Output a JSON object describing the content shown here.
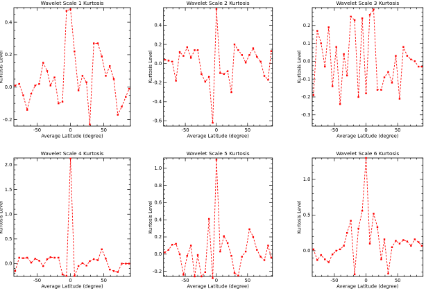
{
  "figure": {
    "background": "#ffffff",
    "axis_color": "#000000",
    "series_color": "#ff0000",
    "rows": 2,
    "cols": 3
  },
  "chart_data": [
    {
      "type": "line",
      "title": "Wavelet Scale 1 Kurtosis",
      "xlabel": "Average Latitude (degree)",
      "ylabel": "Kurtosis Level",
      "legend": "none",
      "grid": false,
      "line_style": "dashed",
      "marker": "square",
      "xlim": [
        -85,
        90
      ],
      "ylim": [
        -0.24,
        0.49
      ],
      "xticks": [
        -50,
        0,
        50
      ],
      "x_minor_step": 10,
      "yticks": [
        -0.2,
        0.0,
        0.2,
        0.4
      ],
      "y_minor_step": 0.05,
      "x": [
        -83,
        -77,
        -71,
        -65,
        -59,
        -53,
        -47,
        -41,
        -35,
        -30,
        -24,
        -18,
        -12,
        -6,
        0,
        6,
        12,
        18,
        24,
        29,
        35,
        41,
        47,
        53,
        59,
        65,
        71,
        77,
        83,
        88
      ],
      "y": [
        0.01,
        0.02,
        -0.05,
        -0.14,
        -0.04,
        0.01,
        0.02,
        0.15,
        0.1,
        0.01,
        0.06,
        -0.1,
        -0.09,
        0.47,
        0.48,
        0.22,
        -0.02,
        0.07,
        0.03,
        -0.23,
        0.27,
        0.27,
        0.19,
        0.07,
        0.13,
        0.05,
        -0.17,
        -0.12,
        -0.06,
        -0.01
      ]
    },
    {
      "type": "line",
      "title": "Wavelet Scale 2 Kurtosis",
      "xlabel": "Average Latitude (degree)",
      "ylabel": "Kurtosis Level",
      "legend": "none",
      "grid": false,
      "line_style": "dashed",
      "marker": "square",
      "xlim": [
        -85,
        90
      ],
      "ylim": [
        -0.655,
        0.585
      ],
      "xticks": [
        -50,
        0,
        50
      ],
      "x_minor_step": 10,
      "yticks": [
        -0.6,
        -0.4,
        -0.2,
        0.0,
        0.2,
        0.4
      ],
      "y_minor_step": 0.05,
      "x": [
        -83,
        -77,
        -71,
        -65,
        -59,
        -53,
        -47,
        -41,
        -35,
        -30,
        -24,
        -18,
        -12,
        -6,
        0,
        6,
        12,
        18,
        24,
        29,
        35,
        41,
        47,
        53,
        59,
        65,
        71,
        77,
        83,
        88
      ],
      "y": [
        0.04,
        0.03,
        0.02,
        -0.18,
        0.12,
        0.08,
        0.17,
        0.06,
        0.14,
        0.14,
        -0.11,
        -0.19,
        -0.14,
        -0.62,
        0.57,
        -0.1,
        -0.11,
        -0.08,
        -0.3,
        0.2,
        0.14,
        0.09,
        0.01,
        0.09,
        0.16,
        0.07,
        0.02,
        -0.13,
        -0.17,
        0.13
      ]
    },
    {
      "type": "line",
      "title": "Wavelet Scale 3 Kurtosis",
      "xlabel": "Average Latitude (degree)",
      "ylabel": "Kurtosis Level",
      "legend": "none",
      "grid": false,
      "line_style": "dashed",
      "marker": "square",
      "xlim": [
        -85,
        90
      ],
      "ylim": [
        -0.363,
        0.3
      ],
      "xticks": [
        -50,
        0,
        50
      ],
      "x_minor_step": 10,
      "yticks": [
        -0.3,
        -0.2,
        -0.1,
        0.0,
        0.1,
        0.2
      ],
      "y_minor_step": 0.025,
      "x": [
        -83,
        -77,
        -71,
        -65,
        -59,
        -53,
        -47,
        -41,
        -35,
        -30,
        -24,
        -18,
        -12,
        -6,
        0,
        6,
        12,
        18,
        24,
        29,
        35,
        41,
        47,
        53,
        59,
        65,
        71,
        77,
        83,
        88
      ],
      "y": [
        -0.19,
        0.17,
        0.1,
        -0.03,
        0.19,
        -0.14,
        0.08,
        -0.24,
        0.04,
        -0.08,
        0.25,
        0.23,
        -0.2,
        0.24,
        -0.18,
        0.26,
        0.29,
        -0.16,
        -0.16,
        -0.09,
        -0.06,
        -0.12,
        0.03,
        -0.21,
        0.08,
        0.03,
        0.01,
        0.0,
        -0.03,
        -0.03
      ]
    },
    {
      "type": "line",
      "title": "Wavelet Scale 4 Kurtosis",
      "xlabel": "Average Latitude (degree)",
      "ylabel": "Kurtosis Level",
      "legend": "none",
      "grid": false,
      "line_style": "dashed",
      "marker": "square",
      "xlim": [
        -85,
        90
      ],
      "ylim": [
        -0.26,
        2.14
      ],
      "xticks": [
        -50,
        0,
        50
      ],
      "x_minor_step": 10,
      "yticks": [
        0.0,
        0.5,
        1.0,
        1.5,
        2.0
      ],
      "y_minor_step": 0.1,
      "x": [
        -83,
        -77,
        -71,
        -65,
        -59,
        -53,
        -47,
        -41,
        -35,
        -30,
        -24,
        -18,
        -12,
        -6,
        0,
        6,
        12,
        18,
        24,
        29,
        35,
        41,
        47,
        53,
        59,
        65,
        71,
        77,
        83,
        88
      ],
      "y": [
        -0.15,
        0.12,
        0.11,
        0.12,
        0.02,
        0.1,
        0.06,
        -0.05,
        0.09,
        0.13,
        0.12,
        0.12,
        -0.22,
        -0.25,
        2.13,
        -0.25,
        -0.05,
        0.01,
        -0.04,
        0.05,
        0.09,
        0.07,
        0.29,
        0.1,
        -0.12,
        -0.15,
        -0.17,
        0.0,
        0.0,
        0.0
      ]
    },
    {
      "type": "line",
      "title": "Wavelet Scale 5 Kurtosis",
      "xlabel": "Average Latitude (degree)",
      "ylabel": "Kurtosis Level",
      "legend": "none",
      "grid": false,
      "line_style": "dashed",
      "marker": "square",
      "xlim": [
        -85,
        90
      ],
      "ylim": [
        -0.26,
        1.12
      ],
      "xticks": [
        -50,
        0,
        50
      ],
      "x_minor_step": 10,
      "yticks": [
        -0.2,
        0.0,
        0.2,
        0.4,
        0.6,
        0.8,
        1.0
      ],
      "y_minor_step": 0.05,
      "x": [
        -83,
        -77,
        -71,
        -65,
        -59,
        -53,
        -47,
        -41,
        -35,
        -30,
        -24,
        -18,
        -12,
        -6,
        0,
        6,
        12,
        18,
        24,
        29,
        35,
        41,
        47,
        53,
        59,
        65,
        71,
        77,
        83,
        88
      ],
      "y": [
        0.02,
        0.05,
        0.11,
        0.12,
        0.0,
        -0.24,
        -0.02,
        0.1,
        -0.26,
        -0.01,
        -0.26,
        -0.21,
        0.41,
        -0.28,
        1.1,
        0.03,
        0.21,
        0.13,
        -0.02,
        -0.22,
        -0.25,
        -0.03,
        0.03,
        0.29,
        0.2,
        0.05,
        -0.03,
        -0.07,
        0.1,
        -0.04
      ]
    },
    {
      "type": "line",
      "title": "Wavelet Scale 6 Kurtosis",
      "xlabel": "Average Latitude (degree)",
      "ylabel": "Kurtosis Level",
      "legend": "none",
      "grid": false,
      "line_style": "dashed",
      "marker": "square",
      "xlim": [
        -85,
        90
      ],
      "ylim": [
        -0.36,
        1.3
      ],
      "xticks": [
        -50,
        0,
        50
      ],
      "x_minor_step": 10,
      "yticks": [
        0.0,
        0.5,
        1.0
      ],
      "y_minor_step": 0.1,
      "x": [
        -83,
        -77,
        -71,
        -65,
        -59,
        -53,
        -47,
        -41,
        -35,
        -30,
        -24,
        -18,
        -12,
        -6,
        0,
        6,
        12,
        18,
        24,
        29,
        35,
        41,
        47,
        53,
        59,
        65,
        71,
        77,
        83,
        88
      ],
      "y": [
        0.02,
        -0.13,
        -0.06,
        -0.12,
        -0.16,
        -0.05,
        0.0,
        0.02,
        0.07,
        0.25,
        0.42,
        -0.33,
        0.31,
        0.56,
        1.3,
        0.1,
        0.52,
        0.33,
        -0.12,
        0.16,
        -0.32,
        0.05,
        0.14,
        0.1,
        0.15,
        0.13,
        0.07,
        0.16,
        0.12,
        0.07
      ]
    }
  ]
}
